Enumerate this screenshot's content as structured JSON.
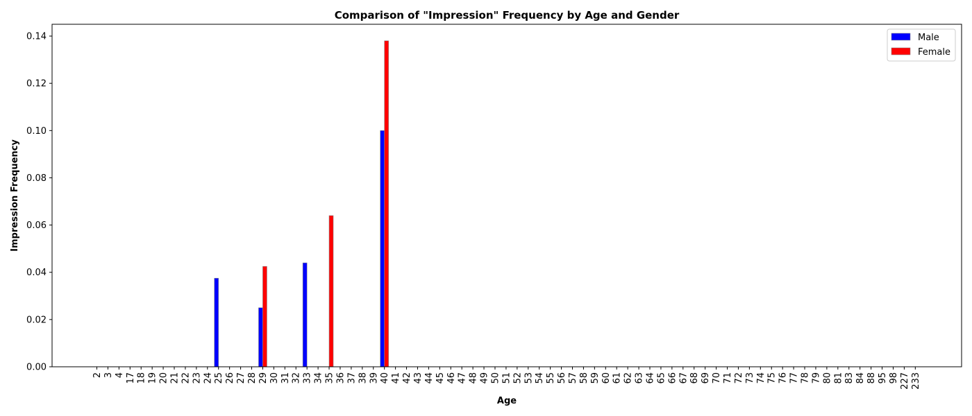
{
  "chart_data": {
    "type": "bar",
    "title": "Comparison of \"Impression\" Frequency by Age and Gender",
    "xlabel": "Age",
    "ylabel": "Impression Frequency",
    "ylim": [
      0,
      0.145
    ],
    "yticks": [
      0.0,
      0.02,
      0.04,
      0.06,
      0.08,
      0.1,
      0.12,
      0.14
    ],
    "ytick_labels": [
      "0.00",
      "0.02",
      "0.04",
      "0.06",
      "0.08",
      "0.10",
      "0.12",
      "0.14"
    ],
    "grid": false,
    "legend_position": "top-right",
    "categories": [
      "2",
      "3",
      "4",
      "17",
      "18",
      "19",
      "20",
      "21",
      "22",
      "23",
      "24",
      "25",
      "26",
      "27",
      "28",
      "29",
      "30",
      "31",
      "32",
      "33",
      "34",
      "35",
      "36",
      "37",
      "38",
      "39",
      "40",
      "41",
      "42",
      "43",
      "44",
      "45",
      "46",
      "47",
      "48",
      "49",
      "50",
      "51",
      "52",
      "53",
      "54",
      "55",
      "56",
      "57",
      "58",
      "59",
      "60",
      "61",
      "62",
      "63",
      "64",
      "65",
      "66",
      "67",
      "68",
      "69",
      "70",
      "71",
      "72",
      "73",
      "74",
      "75",
      "76",
      "77",
      "78",
      "79",
      "80",
      "81",
      "83",
      "84",
      "88",
      "95",
      "98",
      "227",
      "233"
    ],
    "series": [
      {
        "name": "Male",
        "color": "#0000ff",
        "values": [
          0,
          0,
          0,
          0,
          0,
          0,
          0,
          0,
          0,
          0,
          0,
          0.0375,
          0,
          0,
          0,
          0.025,
          0,
          0,
          0,
          0.044,
          0,
          0,
          0,
          0,
          0,
          0,
          0.1,
          0,
          0,
          0,
          0,
          0,
          0,
          0,
          0,
          0,
          0,
          0,
          0,
          0,
          0,
          0,
          0,
          0,
          0,
          0,
          0,
          0,
          0,
          0,
          0,
          0,
          0,
          0,
          0,
          0,
          0,
          0,
          0,
          0,
          0,
          0,
          0,
          0,
          0,
          0,
          0,
          0,
          0,
          0,
          0,
          0,
          0,
          0,
          0
        ]
      },
      {
        "name": "Female",
        "color": "#ff0000",
        "values": [
          0,
          0,
          0,
          0,
          0,
          0,
          0,
          0,
          0,
          0,
          0,
          0,
          0,
          0,
          0,
          0.0425,
          0,
          0,
          0,
          0,
          0,
          0.064,
          0,
          0,
          0,
          0,
          0.138,
          0,
          0,
          0,
          0,
          0,
          0,
          0,
          0,
          0,
          0,
          0,
          0,
          0,
          0,
          0,
          0,
          0,
          0,
          0,
          0,
          0,
          0,
          0,
          0,
          0,
          0,
          0,
          0,
          0,
          0,
          0,
          0,
          0,
          0,
          0,
          0,
          0,
          0,
          0,
          0,
          0,
          0,
          0,
          0,
          0,
          0,
          0,
          0
        ]
      }
    ]
  }
}
